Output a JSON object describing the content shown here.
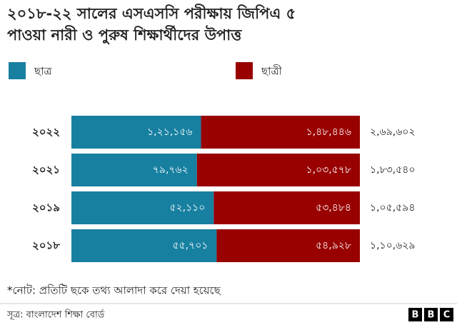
{
  "chart_data": {
    "type": "bar",
    "orientation": "horizontal",
    "stacking": "percent",
    "title": [
      "২০১৮-২২ সালের এসএসসি পরীক্ষায়  জিপিএ ৫",
      "পাওয়া নারী ও পুরুষ শিক্ষার্থীদের উপাত্ত"
    ],
    "categories": [
      "২০২২",
      "২০২১",
      "২০১৯",
      "২০১৮"
    ],
    "series": [
      {
        "name": "ছাত্র",
        "color": "#1780a1",
        "values": [
          121156,
          79762,
          52110,
          55701
        ],
        "value_labels": [
          "১,২১,১৫৬",
          "৭৯,৭৬২",
          "৫২,১১০",
          "৫৫,৭০১"
        ]
      },
      {
        "name": "ছাত্রী",
        "color": "#990000",
        "values": [
          148446,
          103578,
          53484,
          54928
        ],
        "value_labels": [
          "১,৪৮,৪৪৬",
          "১,০৩,৫৭৮",
          "৫৩,৪৮৪",
          "৫৪,৯২৮"
        ]
      }
    ],
    "totals": [
      269602,
      183540,
      105594,
      110629
    ],
    "total_labels": [
      "২,৬৯,৬০২",
      "১,৮৩,৫৪০",
      "১,০৫,৫৯৪",
      "১,১০,৬২৯"
    ],
    "note": "*নোট: প্রতিটি ছকে তথ্য আলাদা করে দেয়া হয়েছে",
    "source": "সূত্র: বাংলাদেশ শিক্ষা বোর্ড",
    "logo": [
      "B",
      "B",
      "C"
    ]
  }
}
